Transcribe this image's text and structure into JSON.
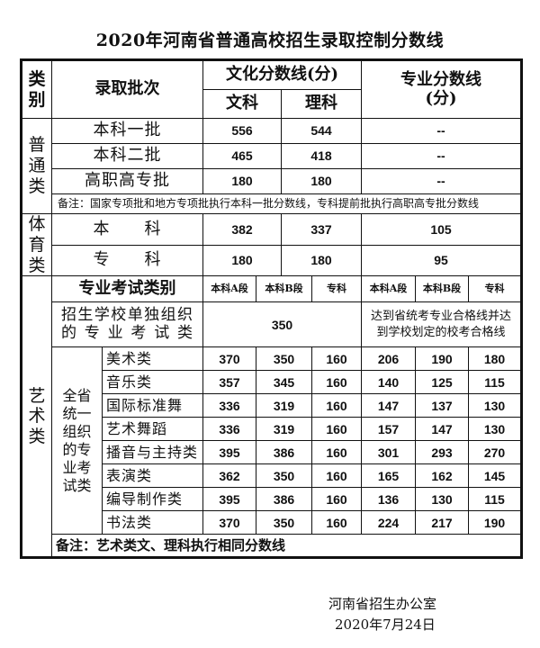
{
  "title": "2020年河南省普通高校招生录取控制分数线",
  "header": {
    "category": "类别",
    "batch": "录取批次",
    "culture": "文化分数线(分)",
    "wenke": "文科",
    "like": "理科",
    "major": "专业分数线(分)"
  },
  "ordinary": {
    "category": "普通类",
    "rows": [
      {
        "batch": "本科一批",
        "wenke": "556",
        "like": "544",
        "major": "--"
      },
      {
        "batch": "本科二批",
        "wenke": "465",
        "like": "418",
        "major": "--"
      },
      {
        "batch": "高职高专批",
        "wenke": "180",
        "like": "180",
        "major": "--"
      }
    ],
    "note": "备注：国家专项批和地方专项批执行本科一批分数线，专科提前批执行高职高专批分数线"
  },
  "sports": {
    "category": "体育类",
    "rows": [
      {
        "batch": "本　　科",
        "wenke": "382",
        "like": "337",
        "major": "105"
      },
      {
        "batch": "专　　科",
        "wenke": "180",
        "like": "180",
        "major": "95"
      }
    ]
  },
  "art": {
    "category": "艺术类",
    "header": {
      "label": "专业考试类别",
      "cols": [
        "本科A段",
        "本科B段",
        "专科",
        "本科A段",
        "本科B段",
        "专科"
      ]
    },
    "independent": {
      "label": "招生学校单独组织的专业考试类",
      "culture": "350",
      "major": "达到省统考专业合格线并达到学校划定的校考合格线"
    },
    "group": "全省统一组织的专业考试类",
    "rows": [
      {
        "name": "美术类",
        "values": [
          "370",
          "350",
          "160",
          "206",
          "190",
          "180"
        ]
      },
      {
        "name": "音乐类",
        "values": [
          "357",
          "345",
          "160",
          "140",
          "125",
          "115"
        ]
      },
      {
        "name": "国际标准舞",
        "values": [
          "336",
          "319",
          "160",
          "147",
          "137",
          "130"
        ]
      },
      {
        "name": "艺术舞蹈",
        "values": [
          "336",
          "319",
          "160",
          "157",
          "147",
          "130"
        ]
      },
      {
        "name": "播音与主持类",
        "values": [
          "395",
          "386",
          "160",
          "301",
          "293",
          "270"
        ]
      },
      {
        "name": "表演类",
        "values": [
          "362",
          "350",
          "160",
          "165",
          "162",
          "145"
        ]
      },
      {
        "name": "编导制作类",
        "values": [
          "395",
          "386",
          "160",
          "136",
          "130",
          "115"
        ]
      },
      {
        "name": "书法类",
        "values": [
          "370",
          "350",
          "160",
          "224",
          "217",
          "190"
        ]
      }
    ],
    "note": "备注：艺术类文、理科执行相同分数线"
  },
  "footer": {
    "issuer": "河南省招生办公室",
    "date": "2020年7月24日"
  }
}
